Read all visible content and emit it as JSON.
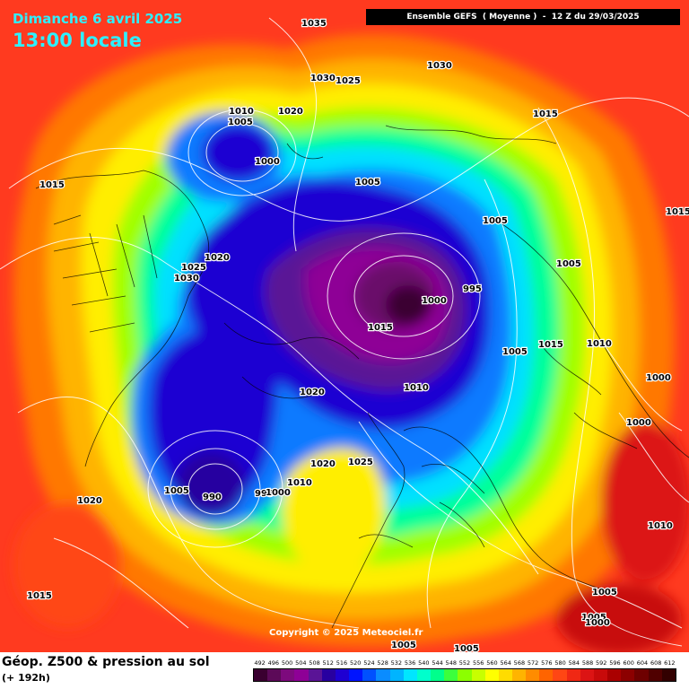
{
  "header": {
    "date": "Dimanche 6 avril 2025",
    "time": "13:00 locale",
    "model": "Ensemble GEFS  ( Moyenne )  -  12 Z du 29/03/2025"
  },
  "copyright": "Copyright © 2025 Meteociel.fr",
  "footer": {
    "title": "Géop. Z500 & pression au sol",
    "subtitle": "(+ 192h)"
  },
  "pressure_labels": [
    "1035",
    "1030",
    "1025",
    "1030",
    "1010",
    "1005",
    "1020",
    "1000",
    "1015",
    "1015",
    "1005",
    "1020",
    "1025",
    "1030",
    "1005",
    "1000",
    "995",
    "1005",
    "1015",
    "1005",
    "1015",
    "1010",
    "1010",
    "1000",
    "1000",
    "1020",
    "1020",
    "1025",
    "1010",
    "1005",
    "990",
    "995",
    "1000",
    "1020",
    "1015",
    "1010",
    "1005",
    "1005",
    "1005",
    "1005",
    "1000",
    "1015"
  ],
  "legend": {
    "values": [
      "492",
      "496",
      "500",
      "504",
      "508",
      "512",
      "516",
      "520",
      "524",
      "528",
      "532",
      "536",
      "540",
      "544",
      "548",
      "552",
      "556",
      "560",
      "564",
      "568",
      "572",
      "576",
      "580",
      "584",
      "588",
      "592",
      "596",
      "600",
      "604",
      "608",
      "612"
    ],
    "colors": [
      "#3a0030",
      "#5c0a58",
      "#7d0a7d",
      "#8e0096",
      "#5a1496",
      "#2800a0",
      "#1e00d2",
      "#0014ff",
      "#0050ff",
      "#0a8cff",
      "#00b4ff",
      "#00e6ff",
      "#00ffcc",
      "#00ff8c",
      "#3cff3c",
      "#8cff00",
      "#c8ff00",
      "#ffff00",
      "#ffdc00",
      "#ffb400",
      "#ff8c00",
      "#ff6400",
      "#ff4614",
      "#f02814",
      "#dc1414",
      "#c80a0a",
      "#aa0000",
      "#8c0000",
      "#6e0000",
      "#500000",
      "#320000"
    ]
  }
}
